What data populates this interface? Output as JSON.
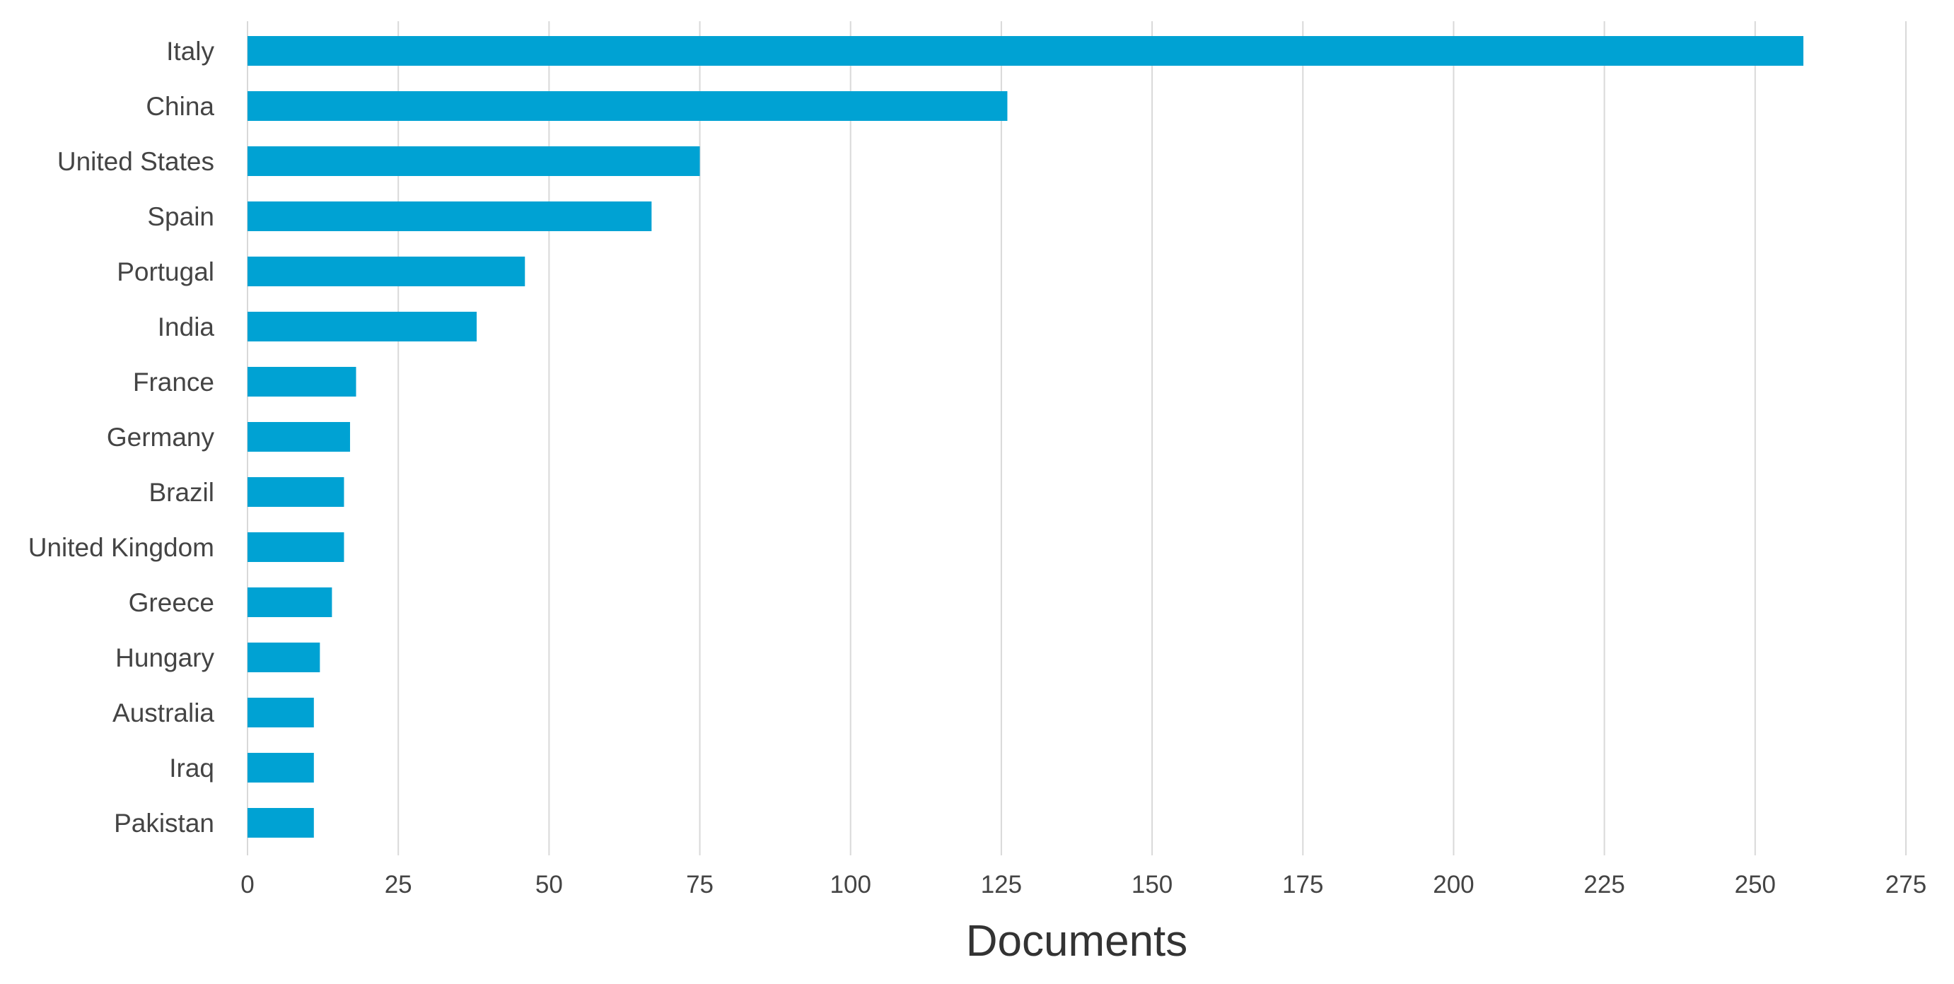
{
  "chart_data": {
    "type": "bar",
    "orientation": "horizontal",
    "categories": [
      "Italy",
      "China",
      "United States",
      "Spain",
      "Portugal",
      "India",
      "France",
      "Germany",
      "Brazil",
      "United Kingdom",
      "Greece",
      "Hungary",
      "Australia",
      "Iraq",
      "Pakistan"
    ],
    "values": [
      258,
      126,
      75,
      67,
      46,
      38,
      18,
      17,
      16,
      16,
      14,
      12,
      11,
      11,
      11
    ],
    "title": "",
    "xlabel": "Documents",
    "ylabel": "",
    "xlim": [
      0,
      275
    ],
    "xticks": [
      0,
      25,
      50,
      75,
      100,
      125,
      150,
      175,
      200,
      225,
      250,
      275
    ],
    "grid": "vertical",
    "legend": "none",
    "bar_color": "#00a2d3"
  }
}
